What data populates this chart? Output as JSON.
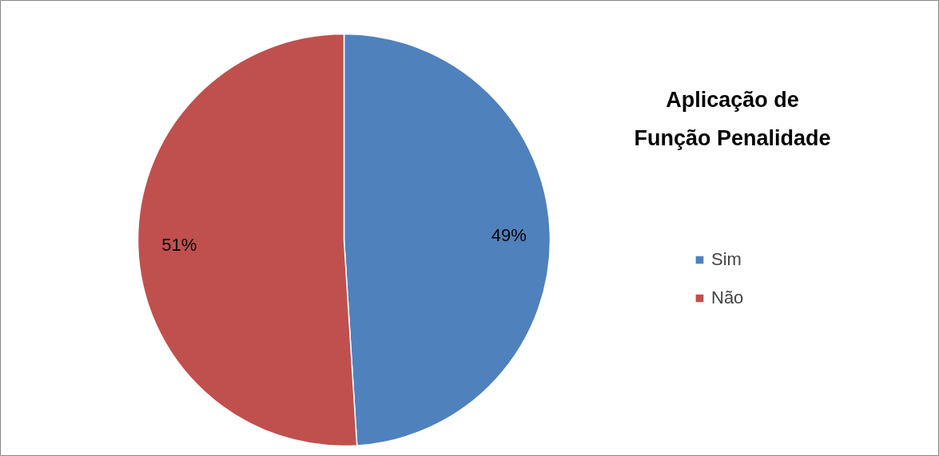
{
  "chart_data": {
    "type": "pie",
    "title": "Aplicação de Função Penalidade",
    "categories": [
      "Sim",
      "Não"
    ],
    "values": [
      49,
      51
    ],
    "colors": [
      "#4f81bd",
      "#c0504d"
    ],
    "value_labels": [
      "49%",
      "51%"
    ],
    "legend": "right"
  }
}
